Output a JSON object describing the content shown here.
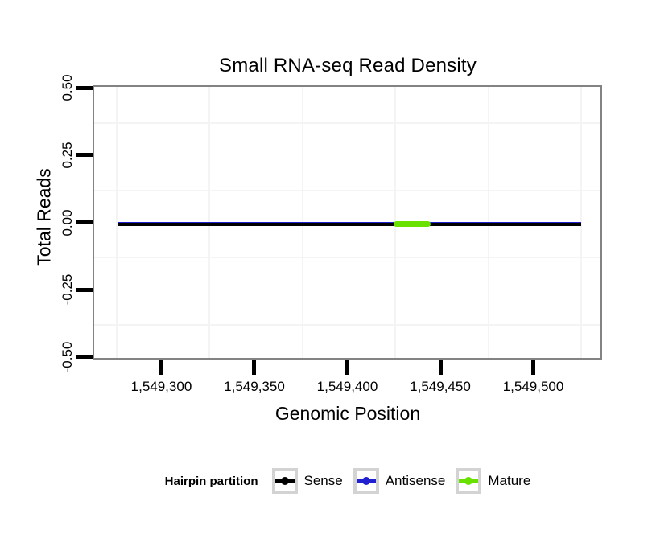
{
  "title": "Small RNA-seq Read Density",
  "axes": {
    "x_label": "Genomic Position",
    "y_label": "Total Reads"
  },
  "legend": {
    "title": "Hairpin partition",
    "position": "bottom",
    "items": [
      {
        "label": "Sense",
        "color": "#000000"
      },
      {
        "label": "Antisense",
        "color": "#2020d0"
      },
      {
        "label": "Mature",
        "color": "#68e000"
      }
    ]
  },
  "colors": {
    "background": "#ffffff",
    "panel_border": "#838383",
    "grid": "#f4f4f4",
    "ticks": "#000000"
  },
  "chart_data": {
    "type": "line",
    "title": "Small RNA-seq Read Density",
    "xlabel": "Genomic Position",
    "ylabel": "Total Reads",
    "xlim": [
      1549263,
      1549537
    ],
    "ylim": [
      -0.51,
      0.51
    ],
    "grid": "minor gridlines only, very light gray",
    "legend_position": "bottom",
    "x_ticks": [
      {
        "value": 1549300,
        "label": "1,549,300"
      },
      {
        "value": 1549350,
        "label": "1,549,350"
      },
      {
        "value": 1549400,
        "label": "1,549,400"
      },
      {
        "value": 1549450,
        "label": "1,549,450"
      },
      {
        "value": 1549500,
        "label": "1,549,500"
      }
    ],
    "y_ticks": [
      {
        "value": 0.5,
        "label": "0.50"
      },
      {
        "value": 0.25,
        "label": "0.25"
      },
      {
        "value": 0.0,
        "label": "0.00"
      },
      {
        "value": -0.25,
        "label": "-0.25"
      },
      {
        "value": -0.5,
        "label": "-0.50"
      }
    ],
    "x_minor_gridlines": [
      1549275,
      1549325,
      1549375,
      1549425,
      1549475,
      1549525
    ],
    "y_minor_gridlines": [
      0.375,
      0.125,
      -0.125,
      -0.375
    ],
    "series": [
      {
        "name": "Antisense",
        "color": "#2020d0",
        "y": 0,
        "x_start": 1549276,
        "x_end": 1549525,
        "note": "flat at 0 total reads across hairpin"
      },
      {
        "name": "Sense",
        "color": "#000000",
        "y": 0,
        "x_start": 1549276,
        "x_end": 1549525,
        "note": "flat at 0 total reads across hairpin"
      },
      {
        "name": "Mature",
        "color": "#68e000",
        "y": 0,
        "x_start": 1549424,
        "x_end": 1549444,
        "note": "mature miRNA segment at 0 reads"
      }
    ]
  }
}
